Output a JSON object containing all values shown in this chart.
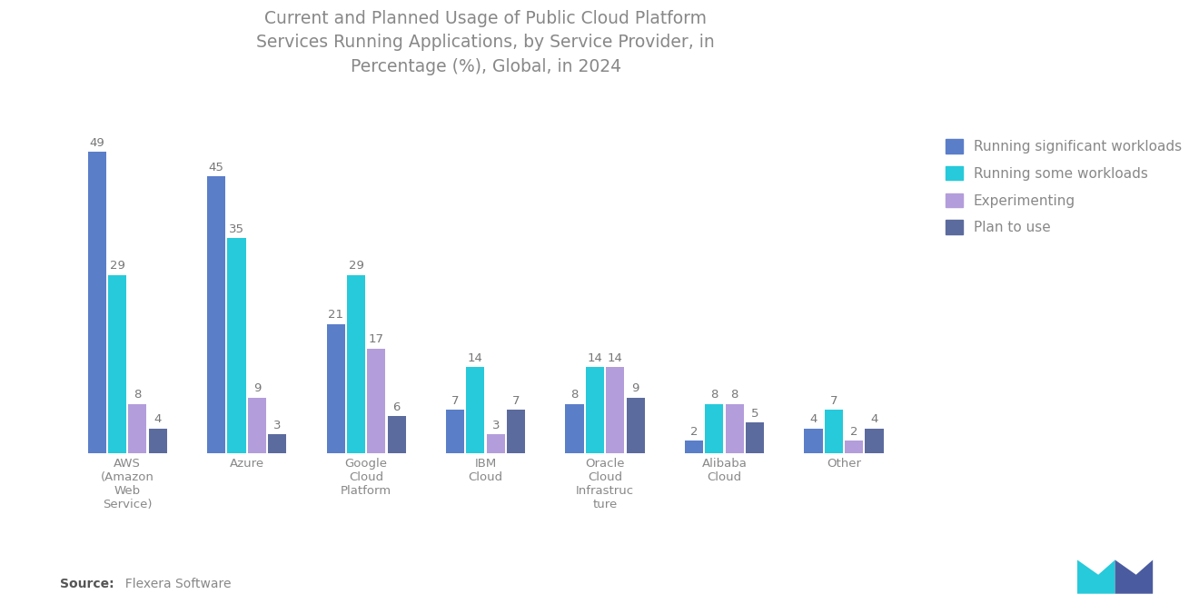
{
  "title": "Current and Planned Usage of Public Cloud Platform\nServices Running Applications, by Service Provider, in\nPercentage (%), Global, in 2024",
  "categories": [
    "AWS\n(Amazon\nWeb\nService)",
    "Azure",
    "Google\nCloud\nPlatform",
    "IBM\nCloud",
    "Oracle\nCloud\nInfrastruc\nture",
    "Alibaba\nCloud",
    "Other"
  ],
  "series": {
    "Running significant workloads": [
      49,
      45,
      21,
      7,
      8,
      2,
      4
    ],
    "Running some workloads": [
      29,
      35,
      29,
      14,
      14,
      8,
      7
    ],
    "Experimenting": [
      8,
      9,
      17,
      3,
      14,
      8,
      2
    ],
    "Plan to use": [
      4,
      3,
      6,
      7,
      9,
      5,
      4
    ]
  },
  "color_map": {
    "Running significant workloads": "#5B7EC9",
    "Running some workloads": "#26CADA",
    "Experimenting": "#B39DDB",
    "Plan to use": "#5C6B9E"
  },
  "legend_labels": [
    "Running significant workloads",
    "Running some workloads",
    "Experimenting",
    "Plan to use"
  ],
  "source_bold": "Source:",
  "source_rest": "  Flexera Software",
  "background_color": "#FFFFFF",
  "ylim": [
    0,
    58
  ],
  "value_label_fontsize": 9.5,
  "axis_label_fontsize": 9.5,
  "title_fontsize": 13.5,
  "legend_fontsize": 11
}
